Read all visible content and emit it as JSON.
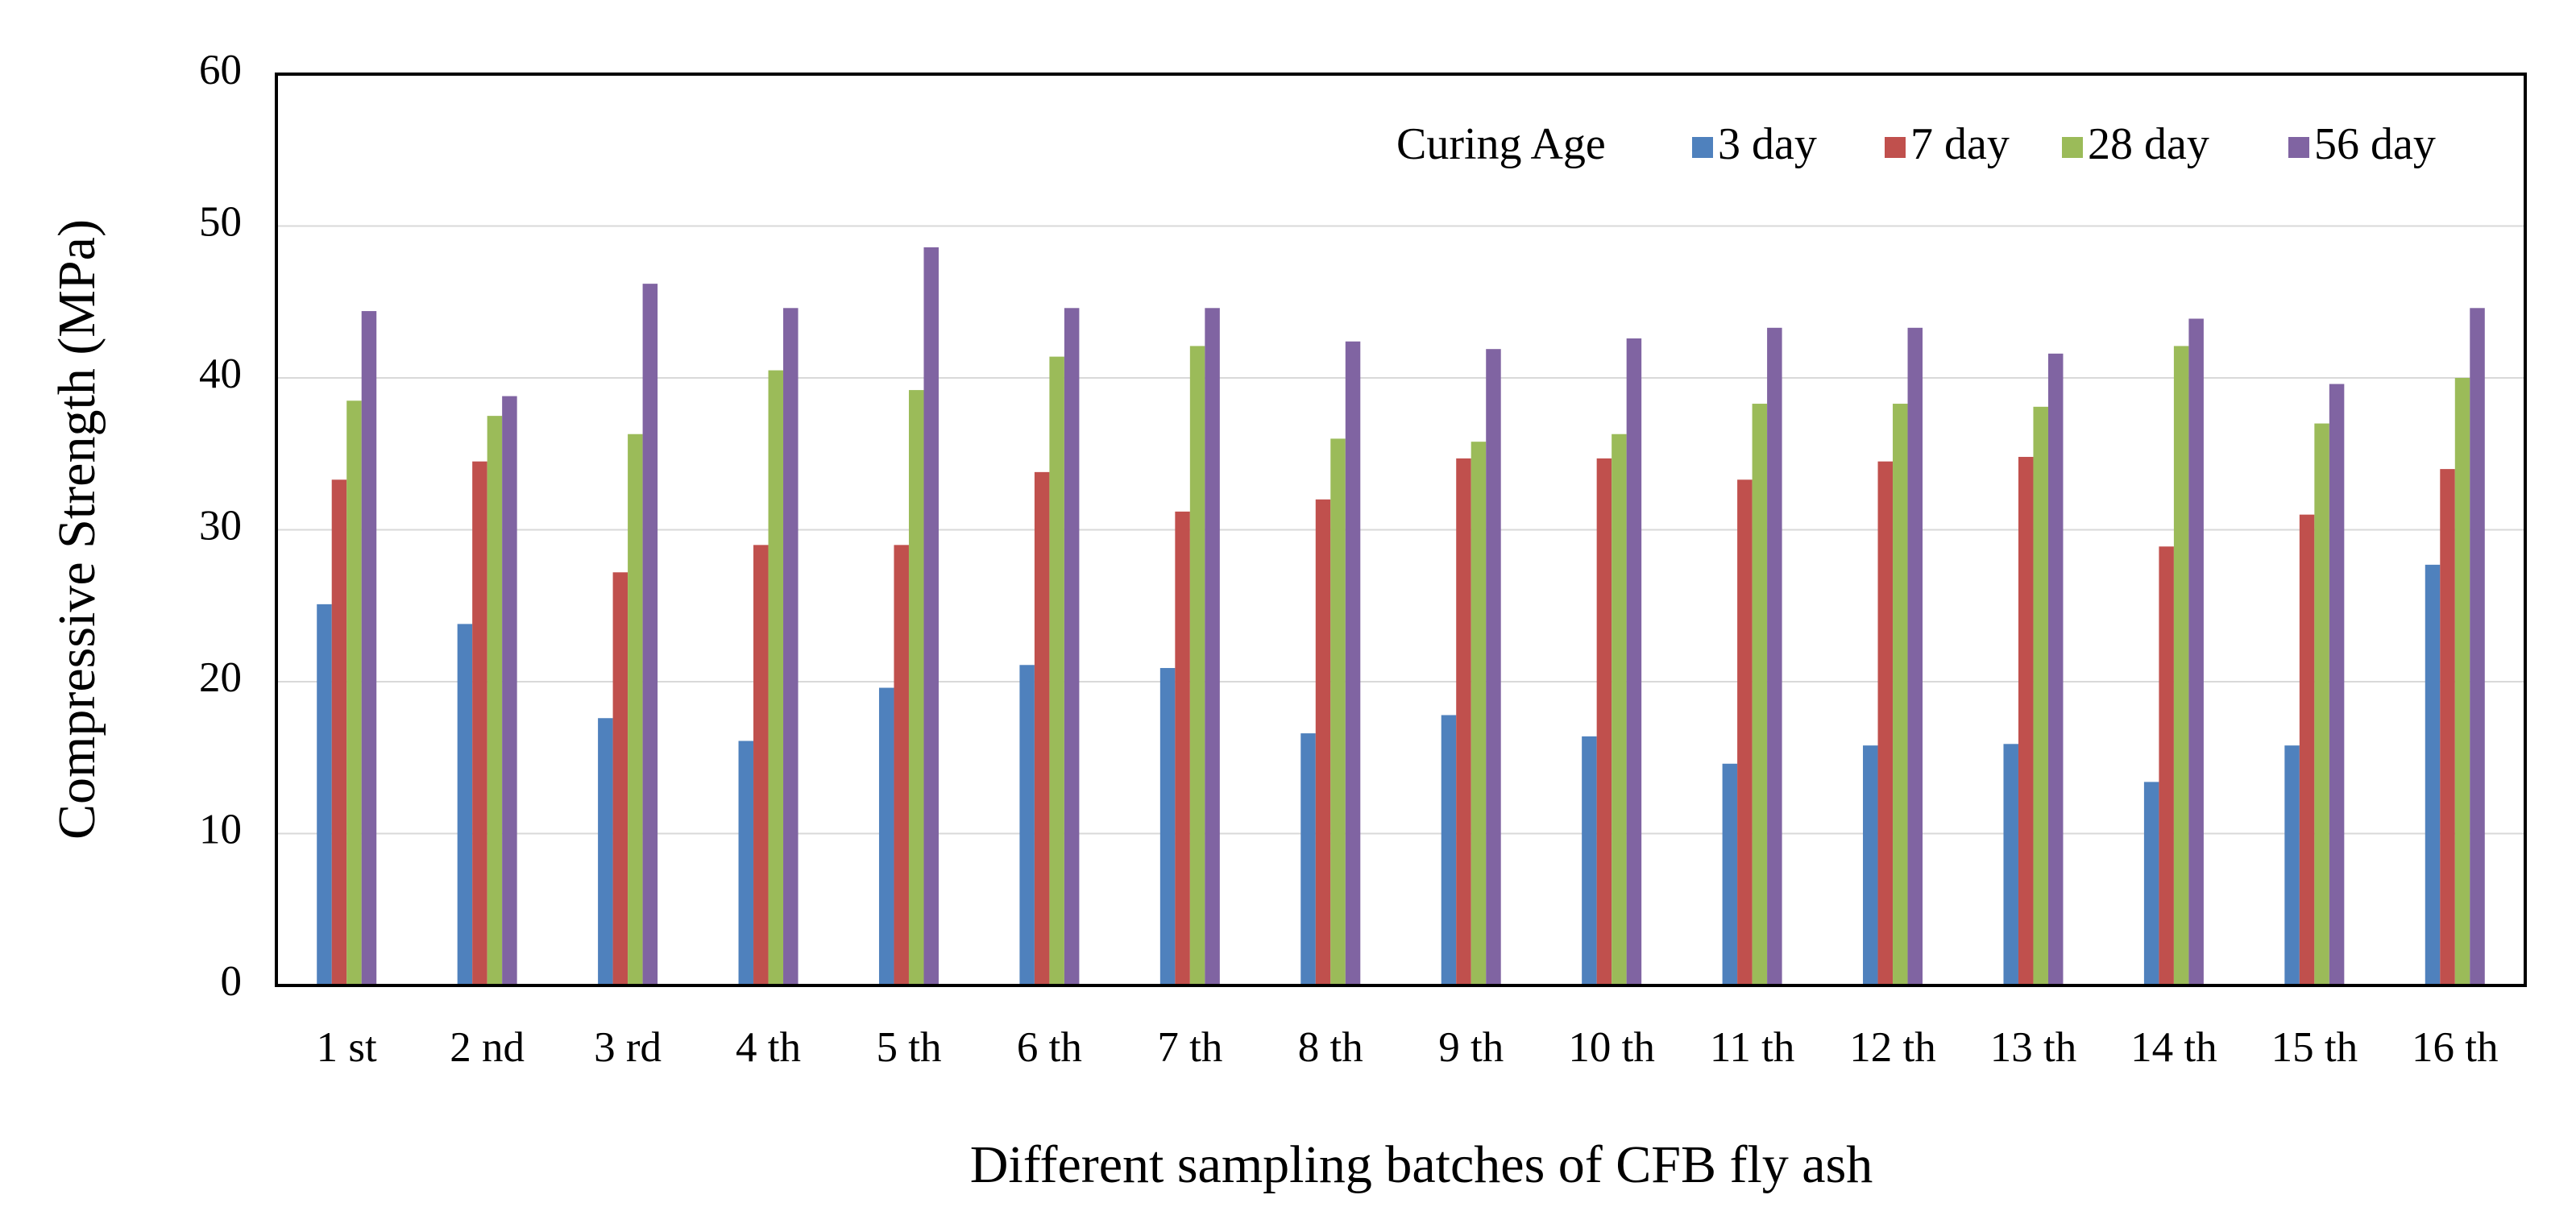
{
  "chart_data": {
    "type": "bar",
    "x_label": "Different sampling batches of CFB fly ash",
    "y_label": "Compressive Strength (MPa)",
    "legend_title": "Curing Age",
    "legend_position": "upper right",
    "grid": true,
    "categories": [
      "1 st",
      "2 nd",
      "3 rd",
      "4 th",
      "5 th",
      "6 th",
      "7 th",
      "8 th",
      "9 th",
      "10 th",
      "11 th",
      "12 th",
      "13 th",
      "14 th",
      "15 th",
      "16 th"
    ],
    "ylim": [
      0,
      60
    ],
    "yticks": [
      0,
      10,
      20,
      30,
      40,
      50,
      60
    ],
    "series": [
      {
        "name": "3 day",
        "color": "#4f81bd",
        "values": [
          25.1,
          23.8,
          17.6,
          16.1,
          19.6,
          21.1,
          20.9,
          16.6,
          17.8,
          16.4,
          14.6,
          15.8,
          15.9,
          13.4,
          15.8,
          27.7
        ]
      },
      {
        "name": "7 day",
        "color": "#c0504d",
        "values": [
          33.3,
          34.5,
          27.2,
          29.0,
          29.0,
          33.8,
          31.2,
          32.0,
          34.7,
          34.7,
          33.3,
          34.5,
          34.8,
          28.9,
          31.0,
          34.0
        ]
      },
      {
        "name": "28 day",
        "color": "#9bbb59",
        "values": [
          38.5,
          37.5,
          36.3,
          40.5,
          39.2,
          41.4,
          42.1,
          36.0,
          35.8,
          36.3,
          38.3,
          38.3,
          38.1,
          42.1,
          37.0,
          40.0
        ]
      },
      {
        "name": "56 day",
        "color": "#8064a2",
        "values": [
          44.4,
          38.8,
          46.2,
          44.6,
          48.6,
          44.6,
          44.6,
          42.4,
          41.9,
          42.6,
          43.3,
          43.3,
          41.6,
          43.9,
          39.6,
          44.6
        ]
      }
    ]
  }
}
